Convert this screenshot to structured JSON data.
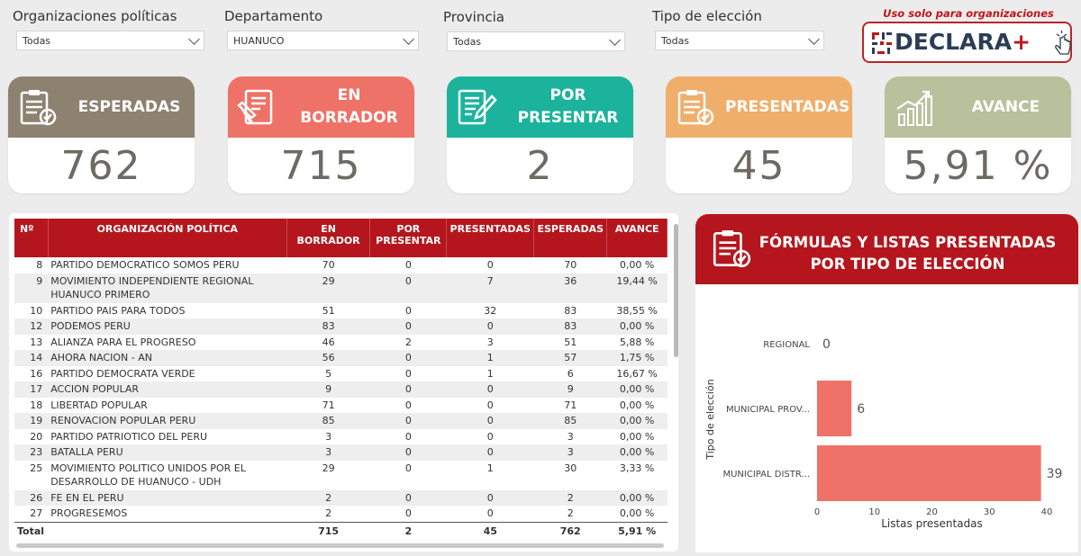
{
  "filters": [
    {
      "label": "Organizaciones políticas",
      "value": "Todas"
    },
    {
      "label": "Departamento",
      "value": "HUANUCO"
    },
    {
      "label": "Provincia",
      "value": "Todas"
    },
    {
      "label": "Tipo de elección",
      "value": "Todas"
    }
  ],
  "brand": {
    "note": "Uso solo para organizaciones políticas",
    "name": "DECLARA",
    "plus": "+"
  },
  "kpis": [
    {
      "title": "ESPERADAS",
      "value": "762",
      "color": "#8d8270",
      "icon": "checklist-icon"
    },
    {
      "title": "EN BORRADOR",
      "value": "715",
      "color": "#ee7267",
      "icon": "document-edit-icon"
    },
    {
      "title": "POR PRESENTAR",
      "value": "2",
      "color": "#1cb39c",
      "icon": "document-pen-icon"
    },
    {
      "title": "PRESENTADAS",
      "value": "45",
      "color": "#f0ae6b",
      "icon": "checklist-icon"
    },
    {
      "title": "AVANCE",
      "value": "5,91 %",
      "color": "#b9c09c",
      "icon": "growth-chart-icon"
    }
  ],
  "table": {
    "headers": [
      "Nº",
      "ORGANIZACIÓN POLÍTICA",
      "EN BORRADOR",
      "POR PRESENTAR",
      "PRESENTADAS",
      "ESPERADAS",
      "AVANCE"
    ],
    "rows": [
      {
        "n": "8",
        "org": "PARTIDO DEMOCRATICO SOMOS PERU",
        "borrador": "70",
        "por": "0",
        "presentadas": "0",
        "esperadas": "70",
        "avance": "0,00 %"
      },
      {
        "n": "9",
        "org": "MOVIMIENTO INDEPENDIENTE REGIONAL HUANUCO PRIMERO",
        "borrador": "29",
        "por": "0",
        "presentadas": "7",
        "esperadas": "36",
        "avance": "19,44 %"
      },
      {
        "n": "10",
        "org": "PARTIDO PAIS PARA TODOS",
        "borrador": "51",
        "por": "0",
        "presentadas": "32",
        "esperadas": "83",
        "avance": "38,55 %"
      },
      {
        "n": "12",
        "org": "PODEMOS PERU",
        "borrador": "83",
        "por": "0",
        "presentadas": "0",
        "esperadas": "83",
        "avance": "0,00 %"
      },
      {
        "n": "13",
        "org": "ALIANZA PARA EL PROGRESO",
        "borrador": "46",
        "por": "2",
        "presentadas": "3",
        "esperadas": "51",
        "avance": "5,88 %"
      },
      {
        "n": "14",
        "org": "AHORA NACION - AN",
        "borrador": "56",
        "por": "0",
        "presentadas": "1",
        "esperadas": "57",
        "avance": "1,75 %"
      },
      {
        "n": "16",
        "org": "PARTIDO DEMOCRATA VERDE",
        "borrador": "5",
        "por": "0",
        "presentadas": "1",
        "esperadas": "6",
        "avance": "16,67 %"
      },
      {
        "n": "17",
        "org": "ACCION POPULAR",
        "borrador": "9",
        "por": "0",
        "presentadas": "0",
        "esperadas": "9",
        "avance": "0,00 %"
      },
      {
        "n": "18",
        "org": "LIBERTAD POPULAR",
        "borrador": "71",
        "por": "0",
        "presentadas": "0",
        "esperadas": "71",
        "avance": "0,00 %"
      },
      {
        "n": "19",
        "org": "RENOVACION POPULAR PERU",
        "borrador": "85",
        "por": "0",
        "presentadas": "0",
        "esperadas": "85",
        "avance": "0,00 %"
      },
      {
        "n": "20",
        "org": "PARTIDO PATRIOTICO DEL PERU",
        "borrador": "3",
        "por": "0",
        "presentadas": "0",
        "esperadas": "3",
        "avance": "0,00 %"
      },
      {
        "n": "23",
        "org": "BATALLA PERU",
        "borrador": "3",
        "por": "0",
        "presentadas": "0",
        "esperadas": "3",
        "avance": "0,00 %"
      },
      {
        "n": "25",
        "org": "MOVIMIENTO POLITICO UNIDOS POR EL DESARROLLO DE HUANUCO - UDH",
        "borrador": "29",
        "por": "0",
        "presentadas": "1",
        "esperadas": "30",
        "avance": "3,33 %"
      },
      {
        "n": "26",
        "org": "FE EN EL PERU",
        "borrador": "2",
        "por": "0",
        "presentadas": "0",
        "esperadas": "2",
        "avance": "0,00 %"
      },
      {
        "n": "27",
        "org": "PROGRESEMOS",
        "borrador": "2",
        "por": "0",
        "presentadas": "0",
        "esperadas": "2",
        "avance": "0,00 %"
      }
    ],
    "total": {
      "label": "Total",
      "borrador": "715",
      "por": "2",
      "presentadas": "45",
      "esperadas": "762",
      "avance": "5,91 %"
    }
  },
  "chart_data": {
    "type": "bar",
    "orientation": "horizontal",
    "title": "FÓRMULAS Y LISTAS PRESENTADAS POR TIPO DE ELECCIÓN",
    "categories": [
      "REGIONAL",
      "MUNICIPAL PROV...",
      "MUNICIPAL DISTR..."
    ],
    "values": [
      0,
      6,
      39
    ],
    "xlabel": "Listas presentadas",
    "ylabel": "Tipo de elección",
    "xlim": [
      0,
      40
    ],
    "xticks": [
      0,
      10,
      20,
      30,
      40
    ],
    "bar_color": "#ee7267",
    "grid": false,
    "data_labels": true
  }
}
